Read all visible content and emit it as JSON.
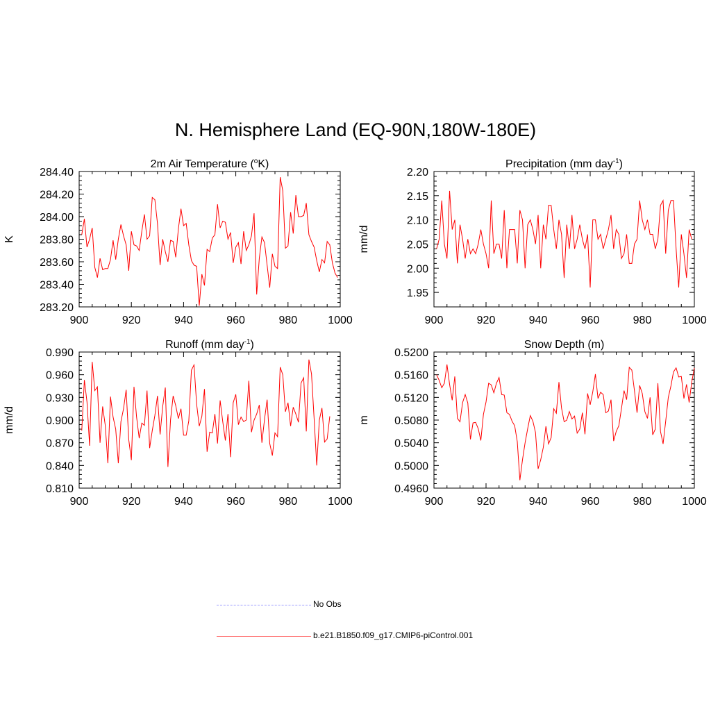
{
  "figure_title": "N. Hemisphere Land (EQ-90N,180W-180E)",
  "colors": {
    "model_line": "#ff0000",
    "obs_line": "#9a9aff",
    "axis": "#000000"
  },
  "legend": {
    "items": [
      {
        "label": "No Obs",
        "style": "dashed",
        "color": "#9a9aff"
      },
      {
        "label": "b.e21.B1850.f09_g17.CMIP6-piControl.001",
        "style": "solid",
        "color": "#ff6666"
      }
    ]
  },
  "chart_data": [
    {
      "type": "line",
      "title": "2m Air Temperature (oK)",
      "title_parts": [
        "2m Air Temperature (",
        "o",
        "K)"
      ],
      "ylabel": "K",
      "xlim": [
        900,
        1000
      ],
      "ylim": [
        283.2,
        284.4
      ],
      "xticks": [
        900,
        920,
        940,
        960,
        980,
        1000
      ],
      "yticks": [
        "283.20",
        "283.40",
        "283.60",
        "283.80",
        "284.00",
        "284.20",
        "284.40"
      ],
      "series": [
        {
          "x_start": 901,
          "values": [
            283.84,
            283.98,
            283.73,
            283.8,
            283.9,
            283.55,
            283.46,
            283.63,
            283.53,
            283.54,
            283.54,
            283.62,
            283.79,
            283.62,
            283.8,
            283.93,
            283.83,
            283.75,
            283.52,
            283.87,
            283.75,
            283.74,
            283.7,
            283.87,
            284.02,
            283.8,
            283.83,
            284.17,
            284.15,
            283.94,
            283.57,
            283.8,
            283.69,
            283.6,
            283.79,
            283.78,
            283.64,
            283.89,
            284.07,
            283.92,
            283.94,
            283.75,
            283.61,
            283.57,
            283.56,
            283.21,
            283.49,
            283.39,
            283.71,
            283.69,
            283.81,
            283.84,
            284.11,
            283.9,
            283.96,
            283.95,
            283.8,
            283.86,
            283.59,
            283.73,
            283.77,
            283.58,
            283.87,
            283.7,
            283.75,
            283.83,
            284.03,
            283.31,
            283.63,
            283.82,
            283.77,
            283.57,
            283.37,
            283.67,
            283.56,
            283.54,
            284.35,
            284.23,
            283.72,
            283.74,
            284.04,
            283.85,
            284.19,
            284.0,
            284.0,
            284.01,
            284.12,
            283.84,
            283.78,
            283.73,
            283.61,
            283.51,
            283.62,
            283.59,
            283.78,
            283.75,
            283.59,
            283.5,
            283.46
          ]
        }
      ]
    },
    {
      "type": "line",
      "title": "Precipitation (mm day-1)",
      "title_parts": [
        "Precipitation (mm day",
        "-1",
        ")"
      ],
      "ylabel": "mm/d",
      "xlim": [
        900,
        1000
      ],
      "ylim": [
        1.92,
        2.2
      ],
      "xticks": [
        900,
        920,
        940,
        960,
        980,
        1000
      ],
      "yticks": [
        "1.95",
        "2.00",
        "2.05",
        "2.10",
        "2.15",
        "2.20"
      ],
      "series": [
        {
          "x_start": 901,
          "values": [
            2.04,
            2.06,
            2.14,
            2.05,
            2.02,
            2.16,
            2.08,
            2.1,
            2.01,
            2.09,
            2.06,
            2.02,
            2.06,
            2.03,
            2.04,
            2.03,
            2.05,
            2.08,
            2.05,
            2.03,
            2.0,
            2.14,
            2.03,
            2.05,
            2.05,
            2.02,
            2.12,
            2.0,
            2.08,
            2.08,
            2.08,
            2.01,
            2.12,
            2.1,
            2.0,
            2.09,
            2.1,
            2.08,
            2.05,
            2.11,
            2.0,
            2.09,
            2.06,
            2.13,
            2.13,
            2.08,
            2.04,
            2.1,
            2.07,
            1.98,
            2.09,
            2.04,
            2.11,
            2.04,
            2.06,
            2.09,
            2.06,
            2.04,
            2.07,
            1.96,
            2.1,
            2.1,
            2.06,
            2.07,
            2.04,
            2.06,
            2.08,
            2.11,
            2.04,
            2.08,
            2.07,
            2.02,
            2.03,
            2.07,
            2.01,
            2.01,
            2.05,
            2.06,
            2.14,
            2.1,
            2.08,
            2.1,
            2.07,
            2.07,
            2.04,
            2.06,
            2.13,
            2.14,
            2.03,
            2.12,
            2.14,
            2.14,
            2.04,
            1.96,
            2.07,
            2.03,
            1.98,
            2.08,
            2.06
          ]
        }
      ]
    },
    {
      "type": "line",
      "title": "Runoff (mm day-1)",
      "title_parts": [
        "Runoff (mm day",
        "-1",
        ")"
      ],
      "ylabel": "mm/d",
      "xlim": [
        900,
        1000
      ],
      "ylim": [
        0.81,
        0.99
      ],
      "xticks": [
        900,
        920,
        940,
        960,
        980,
        1000
      ],
      "yticks": [
        "0.810",
        "0.840",
        "0.870",
        "0.900",
        "0.930",
        "0.960",
        "0.990"
      ],
      "series": [
        {
          "x_start": 901,
          "values": [
            0.886,
            0.953,
            0.924,
            0.866,
            0.977,
            0.939,
            0.944,
            0.87,
            0.918,
            0.893,
            0.843,
            0.931,
            0.904,
            0.888,
            0.843,
            0.898,
            0.915,
            0.94,
            0.874,
            0.847,
            0.944,
            0.904,
            0.876,
            0.896,
            0.893,
            0.939,
            0.863,
            0.886,
            0.906,
            0.932,
            0.881,
            0.918,
            0.943,
            0.838,
            0.9,
            0.932,
            0.919,
            0.902,
            0.915,
            0.88,
            0.88,
            0.899,
            0.966,
            0.973,
            0.921,
            0.892,
            0.905,
            0.941,
            0.858,
            0.884,
            0.883,
            0.908,
            0.869,
            0.926,
            0.898,
            0.873,
            0.908,
            0.851,
            0.923,
            0.934,
            0.894,
            0.904,
            0.898,
            0.9,
            0.952,
            0.884,
            0.9,
            0.908,
            0.92,
            0.87,
            0.901,
            0.927,
            0.869,
            0.853,
            0.883,
            0.878,
            0.97,
            0.96,
            0.911,
            0.923,
            0.892,
            0.917,
            0.908,
            0.897,
            0.949,
            0.956,
            0.885,
            0.98,
            0.961,
            0.902,
            0.84,
            0.9,
            0.916,
            0.871,
            0.875,
            0.905
          ]
        }
      ]
    },
    {
      "type": "line",
      "title": "Snow Depth (m)",
      "ylabel": "m",
      "xlim": [
        900,
        1000
      ],
      "ylim": [
        0.496,
        0.52
      ],
      "xticks": [
        900,
        920,
        940,
        960,
        980,
        1000
      ],
      "yticks": [
        "0.4960",
        "0.5000",
        "0.5040",
        "0.5080",
        "0.5120",
        "0.5160",
        "0.5200"
      ],
      "series": [
        {
          "x_start": 901,
          "values": [
            0.516,
            0.515,
            0.5137,
            0.5145,
            0.5178,
            0.5143,
            0.5115,
            0.5157,
            0.5083,
            0.5077,
            0.5111,
            0.5125,
            0.511,
            0.5046,
            0.5075,
            0.5076,
            0.5065,
            0.5044,
            0.509,
            0.5112,
            0.5145,
            0.5142,
            0.5128,
            0.5145,
            0.5155,
            0.5125,
            0.5124,
            0.5093,
            0.509,
            0.5078,
            0.507,
            0.5042,
            0.4974,
            0.501,
            0.504,
            0.5065,
            0.5088,
            0.5078,
            0.5058,
            0.4994,
            0.501,
            0.5032,
            0.5069,
            0.5038,
            0.5049,
            0.51,
            0.5092,
            0.5147,
            0.5101,
            0.5077,
            0.508,
            0.5095,
            0.5082,
            0.5087,
            0.5057,
            0.5064,
            0.5093,
            0.5055,
            0.5127,
            0.5107,
            0.513,
            0.5161,
            0.5118,
            0.5129,
            0.5125,
            0.5093,
            0.5096,
            0.5116,
            0.5043,
            0.506,
            0.507,
            0.51,
            0.5132,
            0.5116,
            0.5173,
            0.5168,
            0.5132,
            0.5093,
            0.5141,
            0.5127,
            0.5095,
            0.5083,
            0.512,
            0.5054,
            0.5064,
            0.5145,
            0.506,
            0.5038,
            0.5078,
            0.512,
            0.514,
            0.5165,
            0.5172,
            0.5156,
            0.5157,
            0.5118,
            0.5143,
            0.5111,
            0.5147,
            0.5172
          ]
        }
      ]
    }
  ]
}
